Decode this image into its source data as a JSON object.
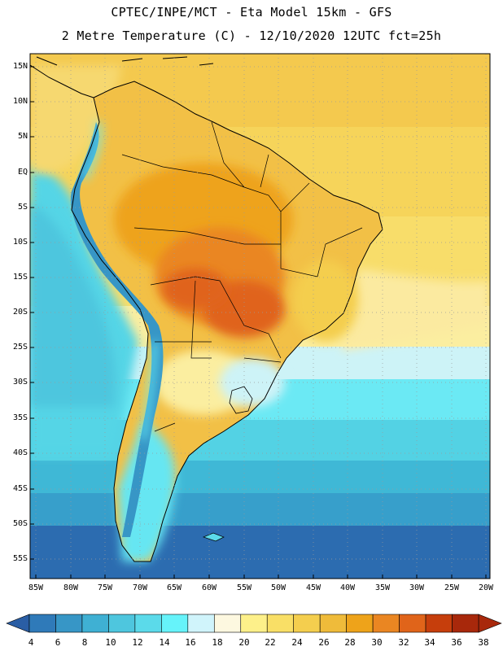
{
  "header": {
    "line1": "CPTEC/INPE/MCT -  Eta Model 15km - GFS",
    "line2": "2 Metre Temperature (C) - 12/10/2020 12UTC fct=25h"
  },
  "map": {
    "latitude_labels": [
      "15N",
      "10N",
      "5N",
      "EQ",
      "5S",
      "10S",
      "15S",
      "20S",
      "25S",
      "30S",
      "35S",
      "40S",
      "45S",
      "50S",
      "55S"
    ],
    "longitude_labels": [
      "85W",
      "80W",
      "75W",
      "70W",
      "65W",
      "60W",
      "55W",
      "50W",
      "45W",
      "40W",
      "35W",
      "30W",
      "25W",
      "20W"
    ]
  },
  "colorbar": {
    "labels": [
      "4",
      "6",
      "8",
      "10",
      "12",
      "14",
      "16",
      "18",
      "20",
      "22",
      "24",
      "26",
      "28",
      "30",
      "32",
      "34",
      "36",
      "38"
    ],
    "colors": [
      "#2a5ea5",
      "#2f7ab9",
      "#3796c6",
      "#3fb0d3",
      "#4ec6de",
      "#5bdaea",
      "#66f3fa",
      "#d0f4fb",
      "#fdf8e0",
      "#fdf08a",
      "#f9df66",
      "#f4ce4e",
      "#efbb3a",
      "#eea31a",
      "#ea8622",
      "#e0641a",
      "#c63e0c",
      "#a8280b"
    ],
    "low_color": "#2a5ea5",
    "high_color": "#a8280b"
  }
}
